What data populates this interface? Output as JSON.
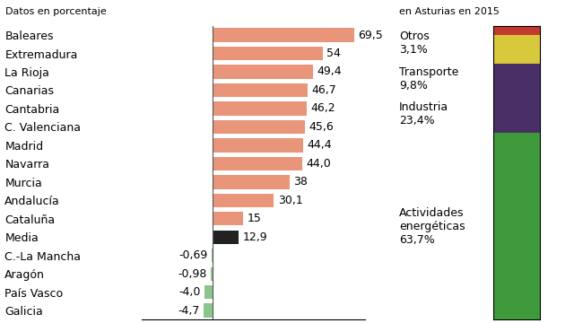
{
  "chart_data": [
    {
      "type": "bar",
      "orientation": "horizontal",
      "subtitle": "Datos en porcentaje",
      "categories": [
        "Baleares",
        "Extremadura",
        "La Rioja",
        "Canarias",
        "Cantabria",
        "C. Valenciana",
        "Madrid",
        "Navarra",
        "Murcia",
        "Andalucía",
        "Cataluña",
        "Media",
        "C.-La Mancha",
        "Aragón",
        "País Vasco",
        "Galicia"
      ],
      "values": [
        69.5,
        54,
        49.4,
        46.7,
        46.2,
        45.6,
        44.4,
        44.0,
        38,
        30.1,
        15,
        12.9,
        -0.69,
        -0.98,
        -4.0,
        -4.7
      ],
      "value_labels": [
        "69,5",
        "54",
        "49,4",
        "46,7",
        "46,2",
        "45,6",
        "44,4",
        "44,0",
        "38",
        "30,1",
        "15",
        "12,9",
        "-0,69",
        "-0,98",
        "-4,0",
        "-4,7"
      ],
      "colors": [
        "#e8957a",
        "#e8957a",
        "#e8957a",
        "#e8957a",
        "#e8957a",
        "#e8957a",
        "#e8957a",
        "#e8957a",
        "#e8957a",
        "#e8957a",
        "#e8957a",
        "#222222",
        "#8cc58c",
        "#8cc58c",
        "#8cc58c",
        "#8cc58c"
      ],
      "xlim": [
        -35,
        75
      ],
      "xticks": [],
      "data_labels": true,
      "tick_labels": "y",
      "grid": false
    },
    {
      "type": "bar",
      "stacked": true,
      "subtitle": "en Asturias en 2015",
      "categories": [
        null
      ],
      "series": [
        {
          "name": "Actividades energéticas",
          "color": "#3f9a3c",
          "values": [
            63.7
          ],
          "value_labels": [
            "63,7%"
          ]
        },
        {
          "name": "Industria",
          "color": "#4a2f66",
          "values": [
            23.4
          ],
          "value_labels": [
            "23,4%"
          ]
        },
        {
          "name": "Transporte",
          "color": "#d8c93c",
          "values": [
            9.8
          ],
          "value_labels": [
            "9,8%"
          ]
        },
        {
          "name": "Otros",
          "color": "#c23b2e",
          "values": [
            3.1
          ],
          "value_labels": [
            "3,1%"
          ]
        }
      ],
      "ylim": [
        0,
        100
      ],
      "yticks": [],
      "data_labels": true,
      "tick_labels": false,
      "grid": false
    }
  ]
}
